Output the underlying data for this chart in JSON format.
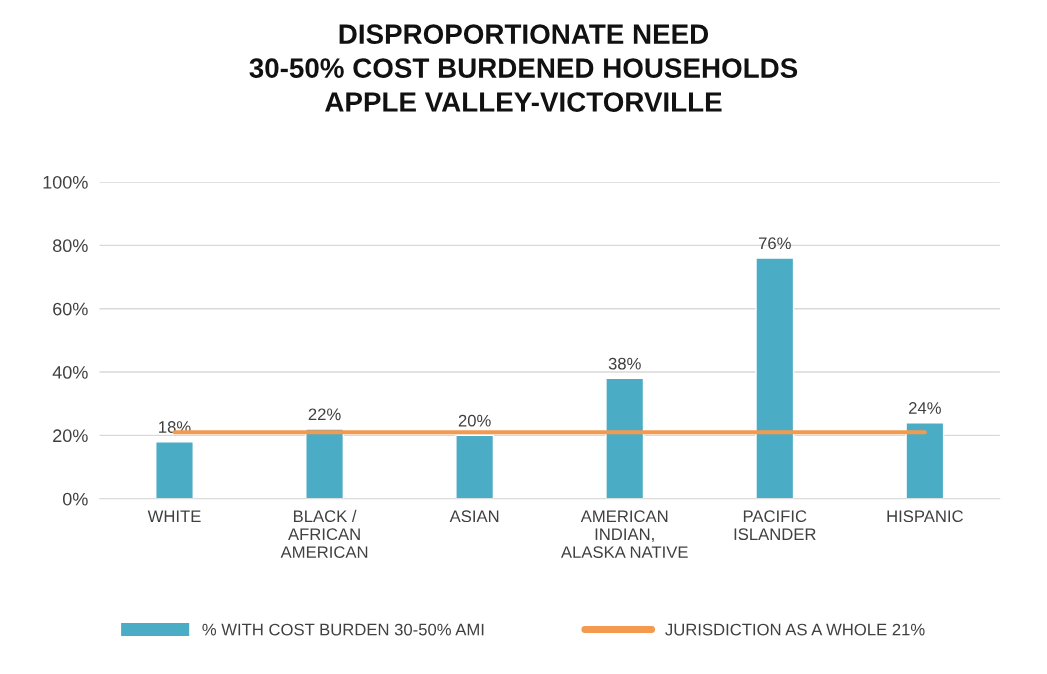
{
  "chart_data": {
    "type": "bar",
    "title": "DISPROPORTIONATE NEED\n30-50% COST BURDENED HOUSEHOLDS\nAPPLE VALLEY-VICTORVILLE",
    "categories": [
      "WHITE",
      "BLACK /\nAFRICAN\nAMERICAN",
      "ASIAN",
      "AMERICAN\nINDIAN,\nALASKA NATIVE",
      "PACIFIC\nISLANDER",
      "HISPANIC"
    ],
    "series": [
      {
        "name": "% WITH COST BURDEN 30-50% AMI",
        "color": "#4bacc6",
        "values": [
          18,
          22,
          20,
          38,
          76,
          24
        ],
        "value_labels": [
          "18%",
          "22%",
          "20%",
          "38%",
          "76%",
          "24%"
        ]
      },
      {
        "name": "JURISDICTION AS A WHOLE 21%",
        "type": "line",
        "color": "#f39a4e",
        "values": [
          21,
          21,
          21,
          21,
          21,
          21
        ]
      }
    ],
    "ylim": [
      0,
      100
    ],
    "yticks": [
      {
        "value": 0,
        "label": "0%"
      },
      {
        "value": 20,
        "label": "20%"
      },
      {
        "value": 40,
        "label": "40%"
      },
      {
        "value": 60,
        "label": "60%"
      },
      {
        "value": 80,
        "label": "80%"
      },
      {
        "value": 100,
        "label": "100%"
      }
    ],
    "grid": "y",
    "legend": "bottom"
  }
}
